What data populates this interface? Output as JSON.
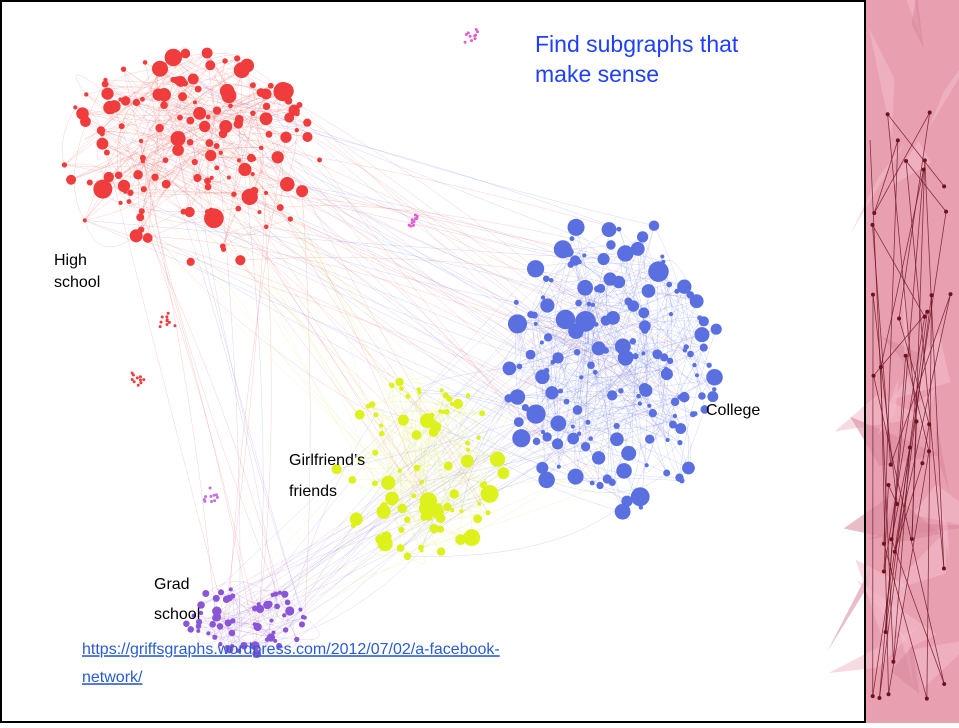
{
  "title": [
    "Find subgraphs that",
    "make sense"
  ],
  "labels": {
    "high_school": [
      "High",
      "school"
    ],
    "college": [
      "College"
    ],
    "girlfriends_friends": [
      "Girlfriend’s",
      "friends"
    ],
    "grad_school": [
      "Grad",
      "school"
    ]
  },
  "link": [
    "https://griffsgraphs.wordpress.com/2012/07/02/a-facebook-",
    "network/"
  ]
}
